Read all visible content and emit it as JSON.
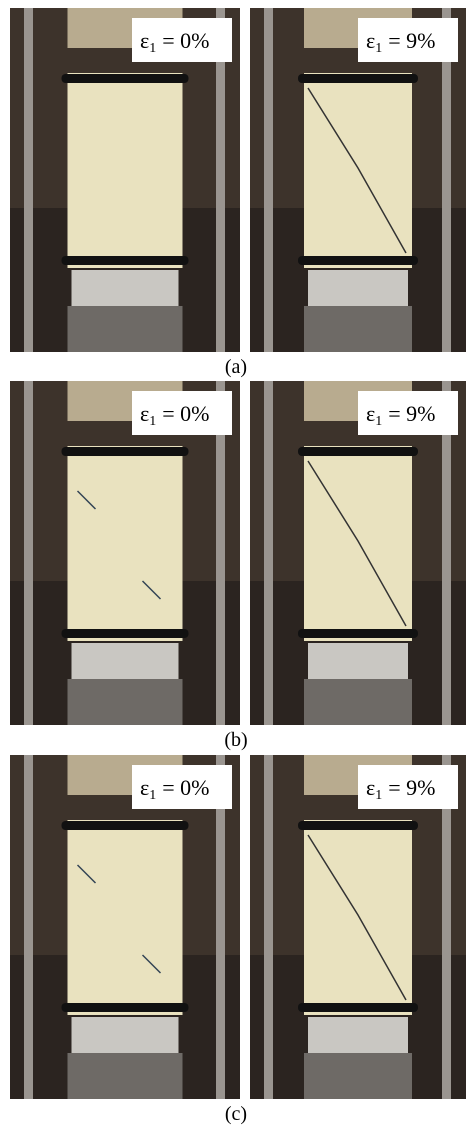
{
  "panels": [
    {
      "caption": "(a)",
      "photos": [
        {
          "label": {
            "symbol": "ε",
            "subscript": "1",
            "rest": "= 0%"
          }
        },
        {
          "label": {
            "symbol": "ε",
            "subscript": "1",
            "rest": "= 9%"
          }
        }
      ]
    },
    {
      "caption": "(b)",
      "photos": [
        {
          "label": {
            "symbol": "ε",
            "subscript": "1",
            "rest": "= 0%"
          }
        },
        {
          "label": {
            "symbol": "ε",
            "subscript": "1",
            "rest": "= 9%"
          }
        }
      ]
    },
    {
      "caption": "(c)",
      "photos": [
        {
          "label": {
            "symbol": "ε",
            "subscript": "1",
            "rest": "= 0%"
          }
        },
        {
          "label": {
            "symbol": "ε",
            "subscript": "1",
            "rest": "= 9%"
          }
        }
      ]
    }
  ]
}
